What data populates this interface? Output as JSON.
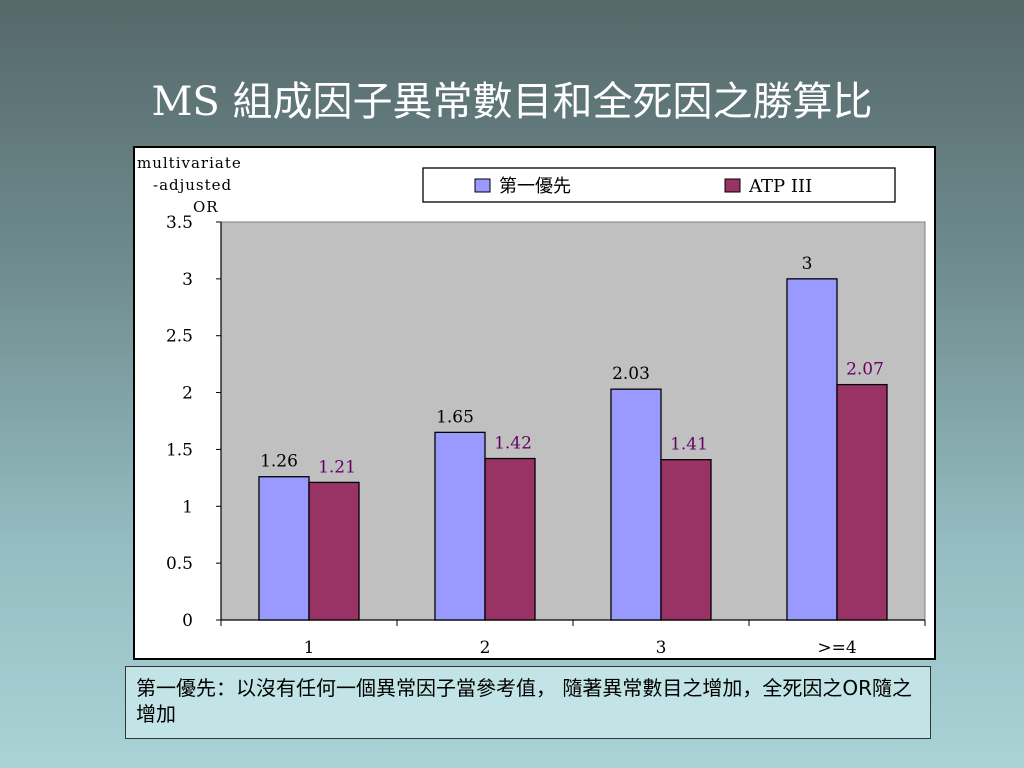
{
  "slide": {
    "title": "MS 組成因子異常數目和全死因之勝算比",
    "caption": "第一優先：以沒有任何一個異常因子當參考值， 隨著異常數目之增加，全死因之OR隨之增加"
  },
  "chart_data": {
    "type": "bar",
    "ylabel_lines": [
      "multivariate",
      "-adjusted",
      "OR"
    ],
    "categories": [
      "1",
      "2",
      "3",
      ">=4"
    ],
    "series": [
      {
        "name": "第一優先",
        "values": [
          1.26,
          1.65,
          2.03,
          3
        ],
        "labels": [
          "1.26",
          "1.65",
          "2.03",
          "3"
        ],
        "color": "#9999ff",
        "label_color": "#000000"
      },
      {
        "name": "ATP III",
        "values": [
          1.21,
          1.42,
          1.41,
          2.07
        ],
        "labels": [
          "1.21",
          "1.42",
          "1.41",
          "2.07"
        ],
        "color": "#993366",
        "label_color": "#660066"
      }
    ],
    "ylim": [
      0,
      3.5
    ],
    "yticks": [
      0,
      0.5,
      1,
      1.5,
      2,
      2.5,
      3,
      3.5
    ],
    "ytick_labels": [
      "0",
      "0.5",
      "1",
      "1.5",
      "2",
      "2.5",
      "3",
      "3.5"
    ],
    "plot_background": "#c0c0c0",
    "grid": false,
    "legend": "top"
  }
}
